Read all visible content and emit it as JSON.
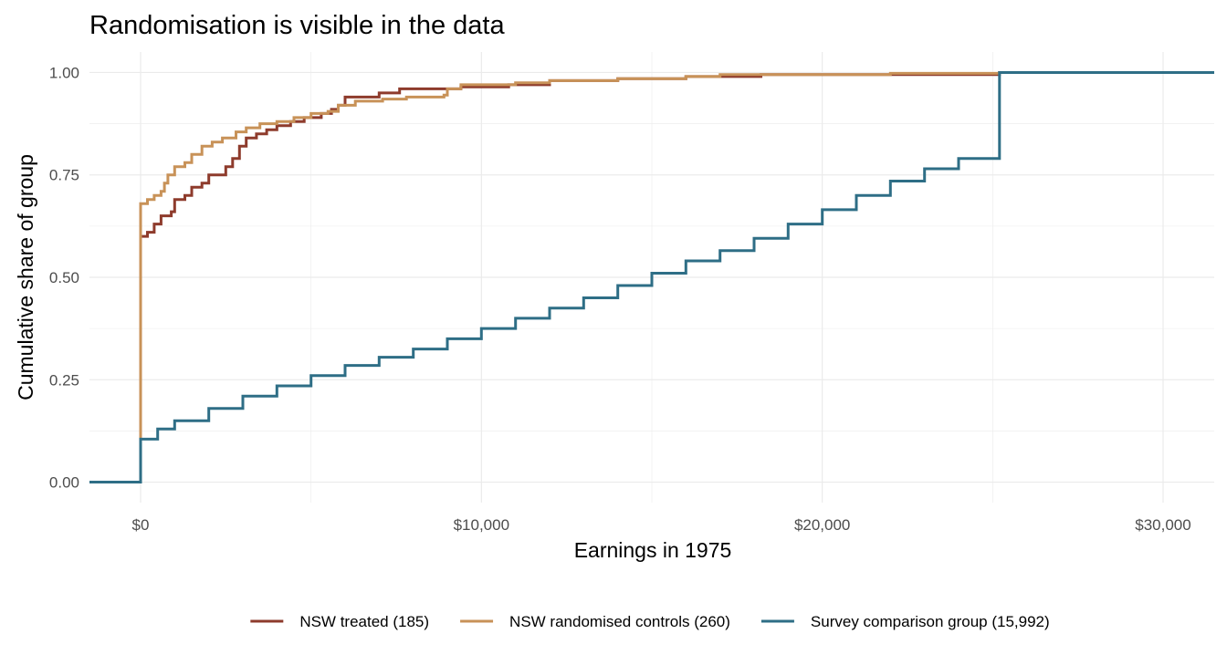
{
  "chart_data": {
    "type": "line",
    "subtype": "step-ecdf",
    "title": "Randomisation is visible in the data",
    "xlabel": "Earnings in 1975",
    "ylabel": "Cumulative share of group",
    "xlim": [
      -1500,
      31500
    ],
    "ylim": [
      -0.05,
      1.05
    ],
    "x_ticks": [
      0,
      10000,
      20000,
      30000
    ],
    "x_tick_labels": [
      "$0",
      "$10,000",
      "$20,000",
      "$30,000"
    ],
    "y_ticks": [
      0,
      0.25,
      0.5,
      0.75,
      1.0
    ],
    "y_tick_labels": [
      "0.00",
      "0.25",
      "0.50",
      "0.75",
      "1.00"
    ],
    "grid": true,
    "legend_position": "bottom",
    "colors": {
      "treated": "#8e3b2c",
      "controls": "#c89258",
      "survey": "#2e6e86",
      "grid": "#ebebeb"
    },
    "series": [
      {
        "name": "NSW treated (185)",
        "color": "#8e3b2c",
        "points": [
          [
            -1500,
            0
          ],
          [
            0,
            0
          ],
          [
            0,
            0.6
          ],
          [
            200,
            0.61
          ],
          [
            400,
            0.63
          ],
          [
            600,
            0.65
          ],
          [
            900,
            0.66
          ],
          [
            1000,
            0.69
          ],
          [
            1300,
            0.7
          ],
          [
            1500,
            0.72
          ],
          [
            1800,
            0.73
          ],
          [
            2000,
            0.75
          ],
          [
            2300,
            0.75
          ],
          [
            2500,
            0.77
          ],
          [
            2700,
            0.79
          ],
          [
            2900,
            0.82
          ],
          [
            3100,
            0.84
          ],
          [
            3400,
            0.85
          ],
          [
            3700,
            0.86
          ],
          [
            4000,
            0.87
          ],
          [
            4400,
            0.88
          ],
          [
            4800,
            0.89
          ],
          [
            5300,
            0.9
          ],
          [
            5600,
            0.91
          ],
          [
            5800,
            0.92
          ],
          [
            6000,
            0.94
          ],
          [
            7000,
            0.95
          ],
          [
            7600,
            0.96
          ],
          [
            9400,
            0.965
          ],
          [
            10800,
            0.97
          ],
          [
            12000,
            0.98
          ],
          [
            14000,
            0.985
          ],
          [
            16000,
            0.99
          ],
          [
            18200,
            0.995
          ],
          [
            25200,
            1.0
          ],
          [
            31500,
            1.0
          ]
        ]
      },
      {
        "name": "NSW randomised controls (260)",
        "color": "#c89258",
        "points": [
          [
            -1500,
            0
          ],
          [
            0,
            0
          ],
          [
            0,
            0.68
          ],
          [
            200,
            0.69
          ],
          [
            400,
            0.7
          ],
          [
            600,
            0.71
          ],
          [
            700,
            0.73
          ],
          [
            800,
            0.75
          ],
          [
            1000,
            0.77
          ],
          [
            1300,
            0.78
          ],
          [
            1500,
            0.8
          ],
          [
            1800,
            0.82
          ],
          [
            2100,
            0.83
          ],
          [
            2400,
            0.84
          ],
          [
            2800,
            0.855
          ],
          [
            3100,
            0.865
          ],
          [
            3500,
            0.875
          ],
          [
            4000,
            0.88
          ],
          [
            4500,
            0.89
          ],
          [
            5000,
            0.9
          ],
          [
            5500,
            0.905
          ],
          [
            5800,
            0.92
          ],
          [
            6300,
            0.93
          ],
          [
            7100,
            0.935
          ],
          [
            7800,
            0.94
          ],
          [
            8900,
            0.945
          ],
          [
            9000,
            0.96
          ],
          [
            9400,
            0.97
          ],
          [
            11000,
            0.975
          ],
          [
            12000,
            0.98
          ],
          [
            14000,
            0.985
          ],
          [
            16000,
            0.99
          ],
          [
            17000,
            0.995
          ],
          [
            22000,
            0.998
          ],
          [
            25200,
            1.0
          ],
          [
            31500,
            1.0
          ]
        ]
      },
      {
        "name": "Survey comparison group (15,992)",
        "color": "#2e6e86",
        "points": [
          [
            -1500,
            0
          ],
          [
            0,
            0
          ],
          [
            0,
            0.105
          ],
          [
            500,
            0.13
          ],
          [
            1000,
            0.15
          ],
          [
            2000,
            0.18
          ],
          [
            3000,
            0.21
          ],
          [
            4000,
            0.235
          ],
          [
            5000,
            0.26
          ],
          [
            6000,
            0.285
          ],
          [
            7000,
            0.305
          ],
          [
            8000,
            0.325
          ],
          [
            9000,
            0.35
          ],
          [
            10000,
            0.375
          ],
          [
            11000,
            0.4
          ],
          [
            12000,
            0.425
          ],
          [
            13000,
            0.45
          ],
          [
            14000,
            0.48
          ],
          [
            15000,
            0.51
          ],
          [
            16000,
            0.54
          ],
          [
            17000,
            0.565
          ],
          [
            18000,
            0.595
          ],
          [
            19000,
            0.63
          ],
          [
            20000,
            0.665
          ],
          [
            21000,
            0.7
          ],
          [
            22000,
            0.735
          ],
          [
            23000,
            0.765
          ],
          [
            24000,
            0.79
          ],
          [
            25200,
            0.81
          ],
          [
            25200,
            1.0
          ],
          [
            31500,
            1.0
          ]
        ]
      }
    ]
  }
}
